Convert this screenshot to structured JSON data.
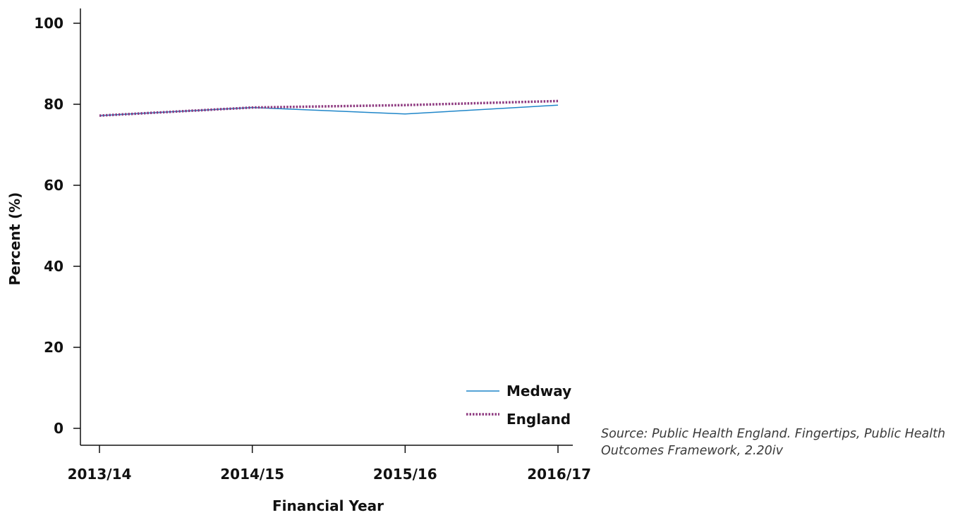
{
  "chart_data": {
    "type": "line",
    "title": "",
    "xlabel": "Financial Year",
    "ylabel": "Percent (%)",
    "categories": [
      "2013/14",
      "2014/15",
      "2015/16",
      "2016/17"
    ],
    "ylim": [
      0,
      100
    ],
    "yticks": [
      0,
      20,
      40,
      60,
      80,
      100
    ],
    "grid": false,
    "legend_position": "bottom-right",
    "series": [
      {
        "name": "Medway",
        "values": [
          77.2,
          79.2,
          77.6,
          79.8
        ],
        "color": "#1f86c9",
        "style": "solid"
      },
      {
        "name": "England",
        "values": [
          77.2,
          79.2,
          79.8,
          80.8
        ],
        "color": "#8e3a80",
        "style": "dotted"
      }
    ]
  },
  "source_note": "Source: Public Health England. Fingertips, Public Health Outcomes Framework, 2.20iv"
}
